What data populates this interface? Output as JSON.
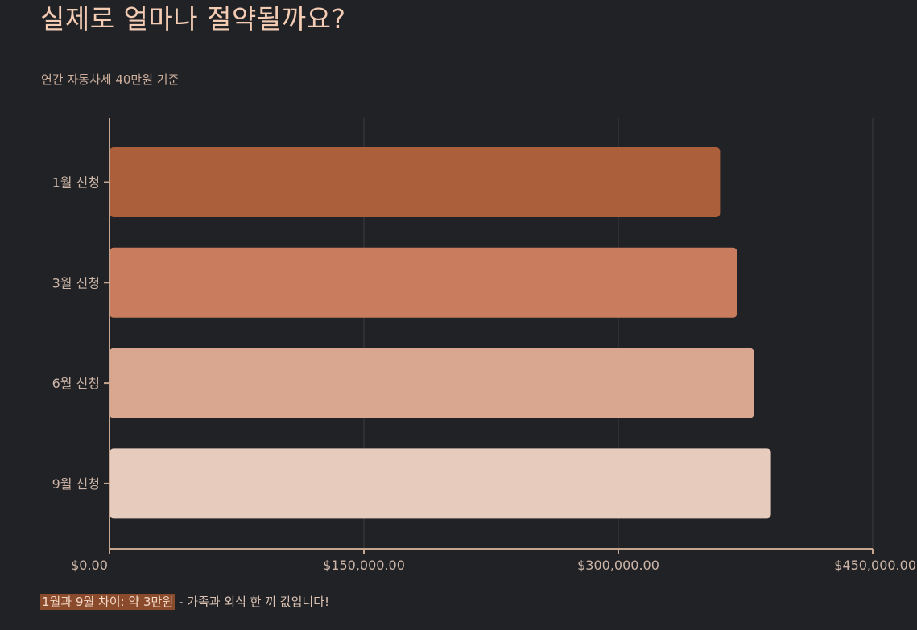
{
  "title": "실제로 얼마나 절약될까요?",
  "subtitle": "연간 자동차세 40만원 기준",
  "footer": {
    "highlight": "1월과 9월 차이: 약 3만원",
    "rest": " - 가족과 외식 한 끼 값입니다!"
  },
  "colors": {
    "background": "#212226",
    "axis": "#c7a690",
    "grid": "#3a3b40",
    "tick_text": "#cdb6a7",
    "bars": [
      "#ab5f3b",
      "#c97d5e",
      "#d9a690",
      "#e7cbbd"
    ]
  },
  "chart_data": {
    "type": "bar",
    "orientation": "horizontal",
    "categories": [
      "1월 신청",
      "3월 신청",
      "6월 신청",
      "9월 신청"
    ],
    "values": [
      360000,
      370000,
      380000,
      390000
    ],
    "xlim": [
      0,
      450000
    ],
    "xticks": [
      0,
      150000,
      300000,
      450000
    ],
    "xtick_labels": [
      "$0.00",
      "$150,000.00",
      "$300,000.00",
      "$450,000.00"
    ],
    "grid": "vertical",
    "title": "실제로 얼마나 절약될까요?",
    "subtitle": "연간 자동차세 40만원 기준"
  }
}
